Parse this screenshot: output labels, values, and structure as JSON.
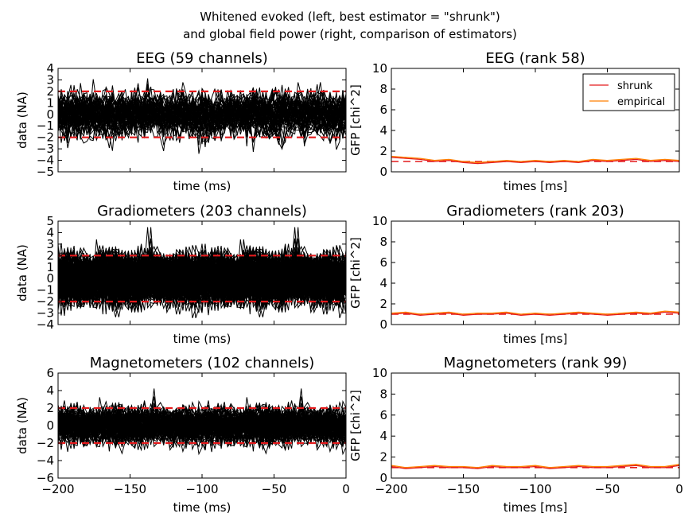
{
  "figure": {
    "title_line1": "Whitened evoked (left, best estimator = \"shrunk\")",
    "title_line2": "and global field power (right, comparison of estimators)"
  },
  "colors": {
    "trace": "#000000",
    "threshold": "#e41a1c",
    "shrunk": "#e41a1c",
    "empirical": "#ff7f00"
  },
  "chart_data": [
    {
      "type": "line",
      "title": "EEG (59 channels)",
      "xlabel": "time (ms)",
      "ylabel": "data (NA)",
      "xlim": [
        -200,
        0
      ],
      "ylim": [
        -5,
        4
      ],
      "yticks": [
        -5,
        -4,
        -3,
        -2,
        -1,
        0,
        1,
        2,
        3,
        4
      ],
      "xticks": [
        -200,
        -150,
        -100,
        -50,
        0
      ],
      "show_xticklabels": false,
      "n_traces": 59,
      "trace_std": 0.85,
      "thresholds": [
        -2,
        2
      ],
      "annotations": [
        "dashed threshold lines at y = -2 and y = 2"
      ]
    },
    {
      "type": "line",
      "title": "EEG (rank 58)",
      "xlabel": "times [ms]",
      "ylabel": "GFP [chi^2]",
      "xlim": [
        -200,
        0
      ],
      "ylim": [
        0,
        10
      ],
      "yticks": [
        0,
        2,
        4,
        6,
        8,
        10
      ],
      "xticks": [
        -200,
        -150,
        -100,
        -50,
        0
      ],
      "show_xticklabels": false,
      "reference": 1,
      "legend_position": "top-right",
      "series": [
        {
          "name": "shrunk",
          "x": [
            -200,
            -190,
            -180,
            -170,
            -160,
            -150,
            -140,
            -130,
            -120,
            -110,
            -100,
            -90,
            -80,
            -70,
            -60,
            -50,
            -40,
            -30,
            -20,
            -10,
            0
          ],
          "values": [
            1.4,
            1.3,
            1.2,
            1.0,
            1.1,
            0.9,
            0.8,
            0.9,
            1.0,
            0.9,
            1.0,
            0.9,
            1.0,
            0.9,
            1.1,
            1.0,
            1.1,
            1.2,
            1.0,
            1.1,
            1.0
          ]
        },
        {
          "name": "empirical",
          "x": [
            -200,
            -190,
            -180,
            -170,
            -160,
            -150,
            -140,
            -130,
            -120,
            -110,
            -100,
            -90,
            -80,
            -70,
            -60,
            -50,
            -40,
            -30,
            -20,
            -10,
            0
          ],
          "values": [
            1.5,
            1.4,
            1.3,
            1.1,
            1.2,
            1.0,
            0.9,
            1.0,
            1.1,
            1.0,
            1.1,
            1.0,
            1.1,
            1.0,
            1.2,
            1.1,
            1.2,
            1.3,
            1.1,
            1.2,
            1.1
          ]
        }
      ]
    },
    {
      "type": "line",
      "title": "Gradiometers (203 channels)",
      "xlabel": "time (ms)",
      "ylabel": "data (NA)",
      "xlim": [
        -200,
        0
      ],
      "ylim": [
        -4,
        5
      ],
      "yticks": [
        -4,
        -3,
        -2,
        -1,
        0,
        1,
        2,
        3,
        4,
        5
      ],
      "xticks": [
        -200,
        -150,
        -100,
        -50,
        0
      ],
      "show_xticklabels": false,
      "n_traces": 203,
      "trace_std": 0.95,
      "thresholds": [
        -2,
        2
      ],
      "annotations": [
        "dashed threshold lines at y = -2 and y = 2"
      ]
    },
    {
      "type": "line",
      "title": "Gradiometers (rank 203)",
      "xlabel": "times [ms]",
      "ylabel": "GFP [chi^2]",
      "xlim": [
        -200,
        0
      ],
      "ylim": [
        0,
        10
      ],
      "yticks": [
        0,
        2,
        4,
        6,
        8,
        10
      ],
      "xticks": [
        -200,
        -150,
        -100,
        -50,
        0
      ],
      "show_xticklabels": false,
      "reference": 1,
      "series": [
        {
          "name": "shrunk",
          "x": [
            -200,
            -190,
            -180,
            -170,
            -160,
            -150,
            -140,
            -130,
            -120,
            -110,
            -100,
            -90,
            -80,
            -70,
            -60,
            -50,
            -40,
            -30,
            -20,
            -10,
            0
          ],
          "values": [
            1.0,
            1.1,
            0.9,
            1.0,
            1.1,
            0.9,
            1.0,
            1.0,
            1.1,
            0.9,
            1.0,
            0.9,
            1.0,
            1.1,
            1.0,
            0.9,
            1.0,
            1.1,
            1.0,
            1.2,
            1.1
          ]
        },
        {
          "name": "empirical",
          "x": [
            -200,
            -190,
            -180,
            -170,
            -160,
            -150,
            -140,
            -130,
            -120,
            -110,
            -100,
            -90,
            -80,
            -70,
            -60,
            -50,
            -40,
            -30,
            -20,
            -10,
            0
          ],
          "values": [
            1.1,
            1.2,
            1.0,
            1.1,
            1.2,
            1.0,
            1.1,
            1.1,
            1.2,
            1.0,
            1.1,
            1.0,
            1.1,
            1.2,
            1.1,
            1.0,
            1.1,
            1.2,
            1.1,
            1.3,
            1.2
          ]
        }
      ]
    },
    {
      "type": "line",
      "title": "Magnetometers (102 channels)",
      "xlabel": "time (ms)",
      "ylabel": "data (NA)",
      "xlim": [
        -200,
        0
      ],
      "ylim": [
        -6,
        6
      ],
      "yticks": [
        -6,
        -4,
        -2,
        0,
        2,
        4,
        6
      ],
      "xticks": [
        -200,
        -150,
        -100,
        -50,
        0
      ],
      "show_xticklabels": true,
      "n_traces": 102,
      "trace_std": 0.9,
      "thresholds": [
        -2,
        2
      ],
      "annotations": [
        "dashed threshold lines at y = -2 and y = 2"
      ]
    },
    {
      "type": "line",
      "title": "Magnetometers (rank 99)",
      "xlabel": "times [ms]",
      "ylabel": "GFP [chi^2]",
      "xlim": [
        -200,
        0
      ],
      "ylim": [
        0,
        10
      ],
      "yticks": [
        0,
        2,
        4,
        6,
        8,
        10
      ],
      "xticks": [
        -200,
        -150,
        -100,
        -50,
        0
      ],
      "show_xticklabels": true,
      "reference": 1,
      "series": [
        {
          "name": "shrunk",
          "x": [
            -200,
            -190,
            -180,
            -170,
            -160,
            -150,
            -140,
            -130,
            -120,
            -110,
            -100,
            -90,
            -80,
            -70,
            -60,
            -50,
            -40,
            -30,
            -20,
            -10,
            0
          ],
          "values": [
            1.1,
            0.9,
            1.0,
            1.1,
            1.0,
            1.0,
            0.9,
            1.1,
            1.0,
            1.0,
            1.1,
            0.9,
            1.0,
            1.1,
            1.0,
            1.0,
            1.1,
            1.2,
            1.0,
            1.0,
            1.2
          ]
        },
        {
          "name": "empirical",
          "x": [
            -200,
            -190,
            -180,
            -170,
            -160,
            -150,
            -140,
            -130,
            -120,
            -110,
            -100,
            -90,
            -80,
            -70,
            -60,
            -50,
            -40,
            -30,
            -20,
            -10,
            0
          ],
          "values": [
            1.2,
            1.0,
            1.1,
            1.2,
            1.1,
            1.1,
            1.0,
            1.2,
            1.1,
            1.1,
            1.2,
            1.0,
            1.1,
            1.2,
            1.1,
            1.1,
            1.2,
            1.3,
            1.1,
            1.1,
            1.3
          ]
        }
      ]
    }
  ]
}
